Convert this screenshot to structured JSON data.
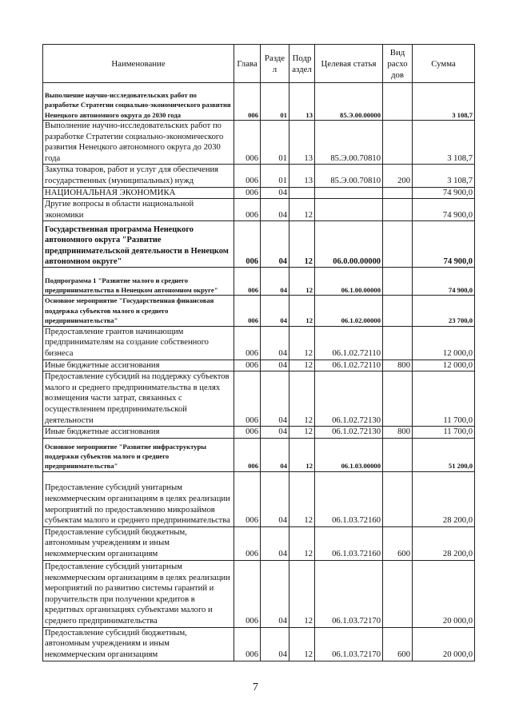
{
  "table": {
    "headers": [
      "Наименование",
      "Глава",
      "Разде л",
      "Подр аздел",
      "Целевая статья",
      "Вид расхо дов",
      "Сумма"
    ],
    "rows": [
      {
        "style": "bold_small",
        "h": 47,
        "name": "Выполнение научно-исследовательских работ по разработке Стратегии социально-экономического развития Ненецкого автономного округа до 2030 года",
        "glava": "006",
        "razdel": "01",
        "podrazdel": "13",
        "cs": "85.Э.00.00000",
        "vr": "",
        "summa": "3 108,7"
      },
      {
        "style": "normal",
        "h": 55,
        "name": " Выполнение научно-исследовательских работ по разработке Стратегии социально-экономического развития Ненецкого автономного округа до 2030 года",
        "glava": "006",
        "razdel": "01",
        "podrazdel": "13",
        "cs": "85.Э.00.70810",
        "vr": "",
        "summa": "3 108,7"
      },
      {
        "style": "normal",
        "h": 28,
        "name": "Закупка товаров, работ и услуг для обеспечения государственных (муниципальных) нужд",
        "glava": "006",
        "razdel": "01",
        "podrazdel": "13",
        "cs": "85.Э.00.70810",
        "vr": "200",
        "summa": "3 108,7"
      },
      {
        "style": "caps",
        "h": 12,
        "name": "НАЦИОНАЛЬНАЯ ЭКОНОМИКА",
        "glava": "006",
        "razdel": "04",
        "podrazdel": "",
        "cs": "",
        "vr": "",
        "summa": "74 900,0"
      },
      {
        "style": "normal",
        "h": 28,
        "name": "Другие вопросы в области национальной экономики",
        "glava": "006",
        "razdel": "04",
        "podrazdel": "12",
        "cs": "",
        "vr": "",
        "summa": "74 900,0"
      },
      {
        "style": "bold",
        "h": 58,
        "name": "Государственная программа Ненецкого автономного округа \"Развитие предпринимательской деятельности в Ненецком автономном округе\"",
        "glava": "006",
        "razdel": "04",
        "podrazdel": "12",
        "cs": "06.0.00.00000",
        "vr": "",
        "summa": "74 900,0"
      },
      {
        "style": "bold_small",
        "h": 35,
        "name": "Подпрограмма 1 \"Развитие малого и среднего предпринимательства в Ненецком автономном округе\"",
        "glava": "006",
        "razdel": "04",
        "podrazdel": "12",
        "cs": "06.1.00.00000",
        "vr": "",
        "summa": "74 900,0"
      },
      {
        "style": "bold_small",
        "h": 37,
        "name": "Основное мероприятие \"Государственная финансовая поддержка субъектов малого и среднего предпринимательства\"",
        "glava": "006",
        "razdel": "04",
        "podrazdel": "12",
        "cs": "06.1.02.00000",
        "vr": "",
        "summa": "23 700,0"
      },
      {
        "style": "normal",
        "h": 42,
        "name": " Предоставление грантов начинающим предпринимателям на создание собственного бизнеса",
        "glava": "006",
        "razdel": "04",
        "podrazdel": "12",
        "cs": "06.1.02.72110",
        "vr": "",
        "summa": "12 000,0"
      },
      {
        "style": "normal",
        "h": 12,
        "name": "Иные бюджетные ассигнования",
        "glava": "006",
        "razdel": "04",
        "podrazdel": "12",
        "cs": "06.1.02.72110",
        "vr": "800",
        "summa": "12 000,0"
      },
      {
        "style": "normal",
        "h": 68,
        "name": " Предоставление субсидий на поддержку субъектов малого и среднего предпринимательства в целях возмещения части затрат, связанных с осуществлением предпринимательской деятельности",
        "glava": "006",
        "razdel": "04",
        "podrazdel": "12",
        "cs": "06.1.02.72130",
        "vr": "",
        "summa": "11 700,0"
      },
      {
        "style": "normal",
        "h": 12,
        "name": "Иные бюджетные ассигнования",
        "glava": "006",
        "razdel": "04",
        "podrazdel": "12",
        "cs": "06.1.02.72130",
        "vr": "800",
        "summa": "11 700,0"
      },
      {
        "style": "bold_small",
        "h": 42,
        "name": "Основное мероприятие \"Развитие инфраструктуры поддержки субъектов малого и  среднего предпринимательства\"",
        "glava": "006",
        "razdel": "04",
        "podrazdel": "12",
        "cs": "06.1.03.00000",
        "vr": "",
        "summa": "51 200,0"
      },
      {
        "style": "normal",
        "h": 69,
        "name": " Предоставление субсидий унитарным некоммерческим организациям в целях реализации мероприятий по предоставлению микрозаймов субъектам малого и среднего предпринимательства",
        "glava": "006",
        "razdel": "04",
        "podrazdel": "12",
        "cs": "06.1.03.72160",
        "vr": "",
        "summa": "28 200,0"
      },
      {
        "style": "normal",
        "h": 41,
        "name": "Предоставление субсидий бюджетным, автономным учреждениям и иным некоммерческим организациям",
        "glava": "006",
        "razdel": "04",
        "podrazdel": "12",
        "cs": "06.1.03.72160",
        "vr": "600",
        "summa": "28 200,0"
      },
      {
        "style": "normal",
        "h": 84,
        "name": " Предоставление субсидий унитарным некоммерческим организациям в целях реализации мероприятий по развитию системы гарантий и поручительств при получении кредитов в кредитных организациях субъектами малого и среднего предпринимательства",
        "glava": "006",
        "razdel": "04",
        "podrazdel": "12",
        "cs": "06.1.03.72170",
        "vr": "",
        "summa": "20 000,0"
      },
      {
        "style": "normal",
        "h": 42,
        "name": "Предоставление субсидий бюджетным, автономным учреждениям и иным некоммерческим организациям",
        "glava": "006",
        "razdel": "04",
        "podrazdel": "12",
        "cs": "06.1.03.72170",
        "vr": "600",
        "summa": "20 000,0"
      }
    ]
  },
  "page_number": "7"
}
